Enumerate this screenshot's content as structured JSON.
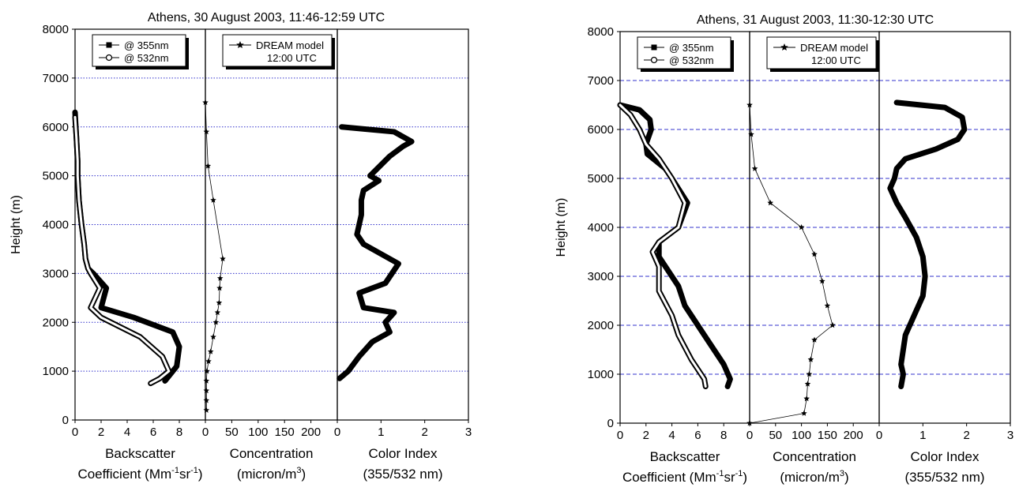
{
  "chart_data": [
    {
      "type": "line",
      "title": "Athens, 30 August 2003, 11:46-12:59 UTC",
      "ylabel": "Height (m)",
      "ylim": [
        0,
        8000
      ],
      "yticks": [
        "0",
        "1000",
        "2000",
        "3000",
        "4000",
        "5000",
        "6000",
        "7000",
        "8000"
      ],
      "grid_y": true,
      "grid_color": "#3333cc",
      "panels": [
        {
          "xlabel": [
            "Backscatter",
            "Coefficient (Mm",
            "-1",
            "sr",
            "-1",
            ")"
          ],
          "xlim": [
            0,
            10
          ],
          "xticks": [
            "0",
            "2",
            "4",
            "6",
            "8"
          ],
          "legend": [
            "@ 355nm",
            "@ 532nm"
          ],
          "series": [
            {
              "name": "@ 355nm",
              "marker": "square",
              "x": [
                0,
                0.1,
                0.2,
                0.2,
                0.3,
                0.5,
                0.7,
                0.8,
                1,
                1.4,
                2.4,
                2,
                4.5,
                7.5,
                8,
                7.8,
                7.2,
                6.9
              ],
              "y": [
                6300,
                5800,
                5300,
                5000,
                4500,
                4000,
                3600,
                3300,
                3100,
                3000,
                2700,
                2300,
                2100,
                1800,
                1500,
                1100,
                900,
                800
              ]
            },
            {
              "name": "@ 532nm",
              "marker": "circle",
              "x": [
                0,
                0.1,
                0.2,
                0.2,
                0.3,
                0.5,
                0.7,
                0.8,
                1,
                1.2,
                1.9,
                1.2,
                2,
                5,
                6.7,
                7.2,
                6.5,
                5.8
              ],
              "y": [
                6200,
                5800,
                5300,
                5000,
                4500,
                4000,
                3600,
                3300,
                3100,
                3000,
                2700,
                2300,
                2100,
                1700,
                1300,
                1000,
                850,
                750
              ]
            }
          ]
        },
        {
          "xlabel": [
            "Concentration",
            "(micron/m",
            "3",
            ")"
          ],
          "xlim": [
            0,
            250
          ],
          "xticks": [
            "0",
            "50",
            "100",
            "150",
            "200"
          ],
          "legend": [
            "DREAM model",
            "12:00 UTC"
          ],
          "series": [
            {
              "name": "DREAM model",
              "marker": "star",
              "x": [
                0,
                2,
                5,
                15,
                33,
                28,
                27,
                26,
                23,
                20,
                15,
                10,
                6,
                3,
                2,
                2,
                2,
                2
              ],
              "y": [
                6500,
                5900,
                5200,
                4500,
                3300,
                2900,
                2700,
                2400,
                2200,
                2000,
                1700,
                1400,
                1200,
                1000,
                800,
                600,
                400,
                200
              ]
            }
          ]
        },
        {
          "xlabel": [
            "Color Index",
            "(355/532 nm)"
          ],
          "xlim": [
            0,
            3
          ],
          "xticks": [
            "0",
            "1",
            "2",
            "3"
          ],
          "series": [
            {
              "name": "Color Index",
              "marker": "square",
              "x": [
                0.1,
                1.3,
                1.7,
                1.5,
                1.2,
                0.75,
                0.95,
                0.6,
                0.55,
                0.55,
                0.5,
                0.45,
                0.6,
                1.4,
                1.1,
                0.5,
                0.6,
                1.3,
                1.1,
                1.2,
                0.8,
                0.5,
                0.25,
                0.05
              ],
              "y": [
                6000,
                5900,
                5700,
                5600,
                5400,
                5000,
                4900,
                4700,
                4500,
                4200,
                4000,
                3800,
                3600,
                3200,
                2800,
                2600,
                2300,
                2200,
                2000,
                1800,
                1600,
                1300,
                1000,
                850
              ]
            }
          ]
        }
      ]
    },
    {
      "type": "line",
      "title": "Athens, 31 August 2003, 11:30-12:30 UTC",
      "ylabel": "Height (m)",
      "ylim": [
        0,
        8000
      ],
      "yticks": [
        "0",
        "1000",
        "2000",
        "3000",
        "4000",
        "5000",
        "6000",
        "7000",
        "8000"
      ],
      "grid_y": true,
      "grid_color": "#3333cc",
      "panels": [
        {
          "xlabel": [
            "Backscatter",
            "Coefficient (Mm",
            "-1",
            "sr",
            "-1",
            ")"
          ],
          "xlim": [
            0,
            10
          ],
          "xticks": [
            "0",
            "2",
            "4",
            "6",
            "8"
          ],
          "legend": [
            "@ 355nm",
            "@ 532nm"
          ],
          "series": [
            {
              "name": "@ 355nm",
              "marker": "square",
              "x": [
                0,
                1.5,
                2.3,
                2.4,
                2,
                2.1,
                3.5,
                4,
                5.2,
                4.5,
                3,
                3,
                4.5,
                5,
                6.5,
                8,
                8.5,
                8.3
              ],
              "y": [
                6500,
                6400,
                6200,
                6000,
                5700,
                5500,
                5200,
                5000,
                4500,
                4000,
                3700,
                3400,
                2800,
                2400,
                1800,
                1200,
                900,
                750
              ]
            },
            {
              "name": "@ 532nm",
              "marker": "circle",
              "x": [
                0,
                0.8,
                1.5,
                2,
                3,
                3.5,
                4,
                5,
                4.5,
                3,
                2.5,
                3,
                3,
                4,
                4.5,
                5.5,
                6.5,
                6.6
              ],
              "y": [
                6500,
                6300,
                6000,
                5700,
                5400,
                5200,
                5000,
                4500,
                4000,
                3700,
                3500,
                3200,
                2700,
                2200,
                1800,
                1300,
                900,
                750
              ]
            }
          ]
        },
        {
          "xlabel": [
            "Concentration",
            "(micron/m",
            "3",
            ")"
          ],
          "xlim": [
            0,
            250
          ],
          "xticks": [
            "0",
            "50",
            "100",
            "150",
            "200"
          ],
          "legend": [
            "DREAM model",
            "12:00 UTC"
          ],
          "series": [
            {
              "name": "DREAM model",
              "marker": "star",
              "x": [
                0,
                3,
                10,
                40,
                100,
                125,
                140,
                150,
                160,
                125,
                118,
                115,
                112,
                110,
                105,
                0
              ],
              "y": [
                6500,
                5900,
                5200,
                4500,
                4000,
                3450,
                2900,
                2400,
                2000,
                1700,
                1300,
                1000,
                800,
                500,
                200,
                0
              ]
            }
          ]
        },
        {
          "xlabel": [
            "Color Index",
            "(355/532 nm)"
          ],
          "xlim": [
            0,
            3
          ],
          "xticks": [
            "0",
            "1",
            "2",
            "3"
          ],
          "series": [
            {
              "name": "Color Index",
              "marker": "square",
              "x": [
                0.4,
                1.5,
                1.9,
                1.95,
                1.8,
                1.3,
                0.6,
                0.4,
                0.35,
                0.25,
                0.4,
                0.6,
                0.85,
                1,
                1.05,
                1,
                0.8,
                0.6,
                0.55,
                0.5,
                0.55,
                0.5
              ],
              "y": [
                6550,
                6450,
                6250,
                6000,
                5800,
                5600,
                5400,
                5200,
                5000,
                4800,
                4500,
                4200,
                3800,
                3400,
                3000,
                2600,
                2200,
                1800,
                1500,
                1200,
                1000,
                750
              ]
            }
          ]
        }
      ]
    }
  ]
}
